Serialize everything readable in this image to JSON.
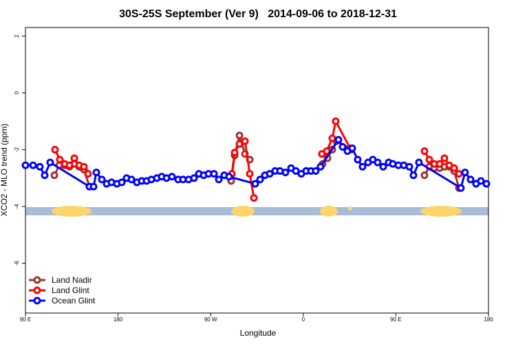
{
  "chart_data": {
    "type": "line",
    "title": "30S-25S September (Ver 9)   2014-09-06 to 2018-12-31",
    "xlabel": "Longitude",
    "ylabel": "XCO2 - MLO trend (ppm)",
    "xlim": [
      90,
      540
    ],
    "ylim": [
      -7.75,
      2.3
    ],
    "xticks": [
      {
        "value": 90,
        "label": "90 E"
      },
      180,
      {
        "value": 270,
        "label": "90 W"
      },
      {
        "value": 360,
        "label": "0"
      },
      {
        "value": 450,
        "label": "90 E"
      },
      {
        "value": 540,
        "label": "180"
      }
    ],
    "yticks": [
      -6,
      -4,
      -2,
      0,
      2
    ],
    "legend": "bottom-left",
    "series": [
      {
        "name": "Land Nadir",
        "color": "#a03030",
        "x": [
          118.1,
          122.8,
          128.1,
          132.8,
          137.5,
          142.2,
          146.8,
          152.2,
          null,
          289.9,
          293.3,
          298,
          303.3,
          308,
          null,
          378.8,
          383.5,
          388.2,
          392.2,
          405.6,
          null,
          477.8,
          482.5,
          487.2,
          492.5,
          497.2,
          501.9,
          506.6,
          511.3
        ],
        "values": [
          -2.9,
          -2.55,
          -2.55,
          -2.6,
          -2.5,
          -2.6,
          -2.7,
          -3.3,
          null,
          -3.1,
          -2.2,
          -1.5,
          -2.15,
          -2.35,
          null,
          -2.5,
          -2.3,
          -2.0,
          -1.7,
          -1.95,
          null,
          -2.9,
          -2.6,
          -2.65,
          -2.65,
          -2.6,
          -2.6,
          -2.75,
          -3.35
        ]
      },
      {
        "name": "Land Glint",
        "color": "#ff0000",
        "x": [
          118.7,
          123.4,
          128.1,
          132.8,
          137.5,
          142.2,
          146.8,
          150.8,
          null,
          290.6,
          293.3,
          298,
          303.3,
          308,
          312,
          null,
          378.1,
          382.8,
          388.2,
          391.5,
          406.3,
          null,
          477.8,
          482.5,
          487.2,
          492.5,
          497.2,
          501.9,
          506.6,
          511.3
        ],
        "values": [
          -2.0,
          -2.35,
          -2.5,
          -2.55,
          -2.3,
          -2.55,
          -2.6,
          -2.85,
          null,
          -2.85,
          -2.1,
          -1.8,
          -1.7,
          -2.85,
          -3.7,
          null,
          -2.15,
          -2.05,
          -1.6,
          -1.0,
          -2.0,
          null,
          -2.05,
          -2.35,
          -2.5,
          -2.5,
          -2.3,
          -2.55,
          -2.65,
          -2.85
        ]
      },
      {
        "name": "Ocean Glint",
        "color": "#0000ff",
        "x": [
          90,
          97.4,
          104,
          108.7,
          114,
          152.2,
          156.2,
          158.9,
          164.2,
          168.9,
          173.6,
          178.9,
          183.6,
          188.3,
          193,
          198.3,
          203,
          207.7,
          212.4,
          217.7,
          222.4,
          227.1,
          232.4,
          238.4,
          243.1,
          248.5,
          253.8,
          258.5,
          263.2,
          267.9,
          273.2,
          277.9,
          283.2,
          287.9,
          313.3,
          318,
          322.7,
          327.4,
          332.7,
          337.4,
          342.7,
          348.1,
          352.8,
          358.1,
          362.8,
          367.5,
          372.1,
          376.8,
          394.2,
          398.2,
          402.9,
          407.6,
          412.9,
          417.6,
          422.9,
          427.6,
          432.3,
          437.7,
          443,
          447,
          452.4,
          457.7,
          463.1,
          467.1,
          472.4,
          513.2,
          517.2,
          522.6,
          527.9,
          532.6,
          538
        ],
        "values": [
          -2.55,
          -2.55,
          -2.6,
          -2.9,
          -2.45,
          -3.3,
          -3.3,
          -2.8,
          -3.05,
          -3.2,
          -3.15,
          -3.2,
          -3.15,
          -3.0,
          -3.05,
          -3.15,
          -3.1,
          -3.1,
          -3.05,
          -3.0,
          -2.95,
          -3.0,
          -2.95,
          -3.05,
          -3.05,
          -3.05,
          -3.0,
          -2.85,
          -2.9,
          -2.85,
          -2.85,
          -3.05,
          -2.9,
          -2.95,
          -3.2,
          -3.05,
          -2.9,
          -2.85,
          -2.75,
          -2.75,
          -2.8,
          -2.65,
          -2.75,
          -2.85,
          -2.75,
          -2.75,
          -2.75,
          -2.6,
          -1.65,
          -1.9,
          -2.05,
          -1.95,
          -2.35,
          -2.6,
          -2.45,
          -2.35,
          -2.45,
          -2.6,
          -2.45,
          -2.5,
          -2.55,
          -2.55,
          -2.6,
          -2.9,
          -2.45,
          -3.35,
          -2.8,
          -3.05,
          -3.2,
          -3.1,
          -3.2
        ]
      }
    ]
  }
}
